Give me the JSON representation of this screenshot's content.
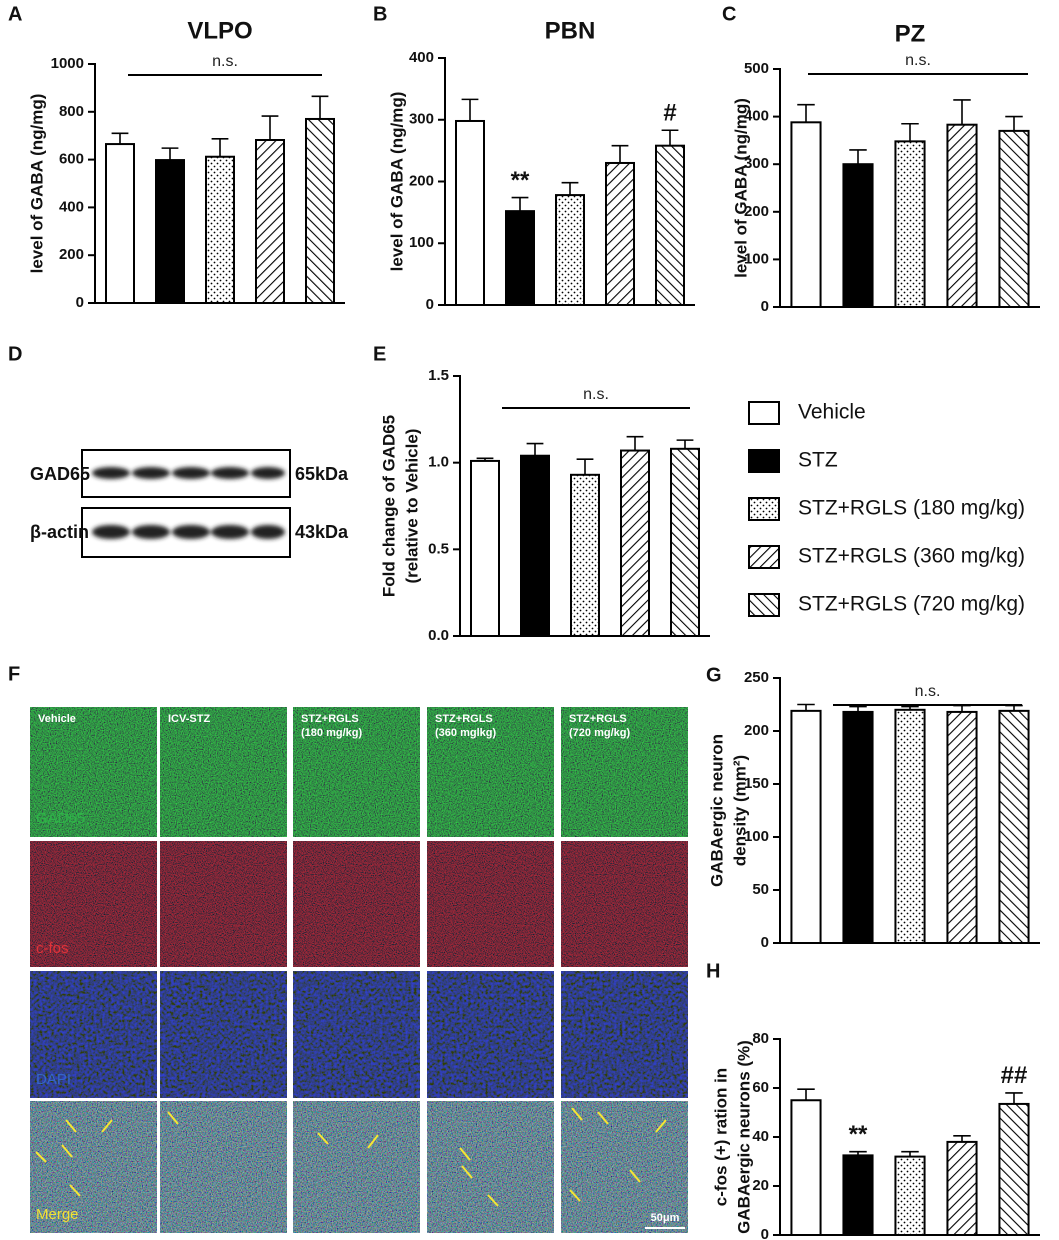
{
  "chart_data": [
    {
      "type": "bar",
      "panel": "A",
      "title": "VLPO",
      "ylabel": "level of GABA (ng/mg)",
      "ylim": [
        0,
        1000
      ],
      "yticks": [
        0,
        200,
        400,
        600,
        800,
        1000
      ],
      "values": [
        665,
        598,
        612,
        682,
        770
      ],
      "errors": [
        45,
        50,
        75,
        100,
        95
      ],
      "annotation": "n.s."
    },
    {
      "type": "bar",
      "panel": "B",
      "title": "PBN",
      "ylabel": "level of GABA (ng/mg)",
      "ylim": [
        0,
        400
      ],
      "yticks": [
        0,
        100,
        200,
        300,
        400
      ],
      "values": [
        298,
        152,
        178,
        230,
        258
      ],
      "errors": [
        35,
        22,
        20,
        28,
        25
      ],
      "bar_labels": [
        null,
        "**",
        null,
        null,
        "#"
      ]
    },
    {
      "type": "bar",
      "panel": "C",
      "title": "PZ",
      "ylabel": "level of GABA (ng/mg)",
      "ylim": [
        0,
        500
      ],
      "yticks": [
        0,
        100,
        200,
        300,
        400,
        500
      ],
      "values": [
        388,
        300,
        348,
        383,
        370
      ],
      "errors": [
        37,
        30,
        37,
        52,
        30
      ],
      "annotation": "n.s."
    },
    {
      "type": "bar",
      "panel": "E",
      "ylabel": [
        "Fold change of GAD65",
        "(relative to Vehicle)"
      ],
      "ylim": [
        0,
        1.5
      ],
      "yticks": [
        {
          "value": 0,
          "label": "0.0"
        },
        0.5,
        {
          "value": 1,
          "label": "1.0"
        },
        1.5
      ],
      "values": [
        1.01,
        1.04,
        0.93,
        1.07,
        1.08
      ],
      "errors": [
        0.015,
        0.07,
        0.09,
        0.08,
        0.05
      ],
      "annotation": "n.s."
    },
    {
      "type": "bar",
      "panel": "G",
      "ylabel": [
        "GABAergic neuron",
        "density (mm²)"
      ],
      "ylim": [
        0,
        250
      ],
      "yticks": [
        0,
        50,
        100,
        150,
        200,
        250
      ],
      "values": [
        219,
        218,
        220,
        218,
        219
      ],
      "errors": [
        6,
        5,
        3,
        6,
        5
      ],
      "annotation": "n.s."
    },
    {
      "type": "bar",
      "panel": "H",
      "ylabel": [
        "c-fos (+) ration in",
        "GABAergic neurons (%)"
      ],
      "ylim": [
        0,
        80
      ],
      "yticks": [
        0,
        20,
        40,
        60,
        80
      ],
      "values": [
        55,
        32.5,
        32,
        38,
        53.5
      ],
      "errors": [
        4.5,
        1.5,
        2,
        2.5,
        4.5
      ],
      "bar_labels": [
        null,
        "**",
        null,
        null,
        "##"
      ]
    }
  ],
  "groups": [
    {
      "name": "Vehicle",
      "pattern": "none"
    },
    {
      "name": "STZ",
      "pattern": "solid"
    },
    {
      "name": "STZ+RGLS (180 mg/kg)",
      "pattern": "dots"
    },
    {
      "name": "STZ+RGLS (360 mg/kg)",
      "pattern": "hatch-forward"
    },
    {
      "name": "STZ+RGLS (720 mg/kg)",
      "pattern": "hatch-backward"
    }
  ],
  "blot": {
    "panel": "D",
    "rows": [
      {
        "protein": "GAD65",
        "size": "65kDa"
      },
      {
        "protein": "β-actin",
        "size": "43kDa"
      }
    ]
  },
  "micrographs": {
    "panel": "F",
    "columns": [
      [
        "Vehicle"
      ],
      [
        "ICV-STZ"
      ],
      [
        "STZ+RGLS",
        "(180 mg/kg)"
      ],
      [
        "STZ+RGLS",
        "(360 mglkg)"
      ],
      [
        "STZ+RGLS",
        "(720 mg/kg)"
      ]
    ],
    "rows": [
      "GAD65",
      "c-fos",
      "DAPI",
      "Merge"
    ],
    "scale_bar": "50μm"
  }
}
